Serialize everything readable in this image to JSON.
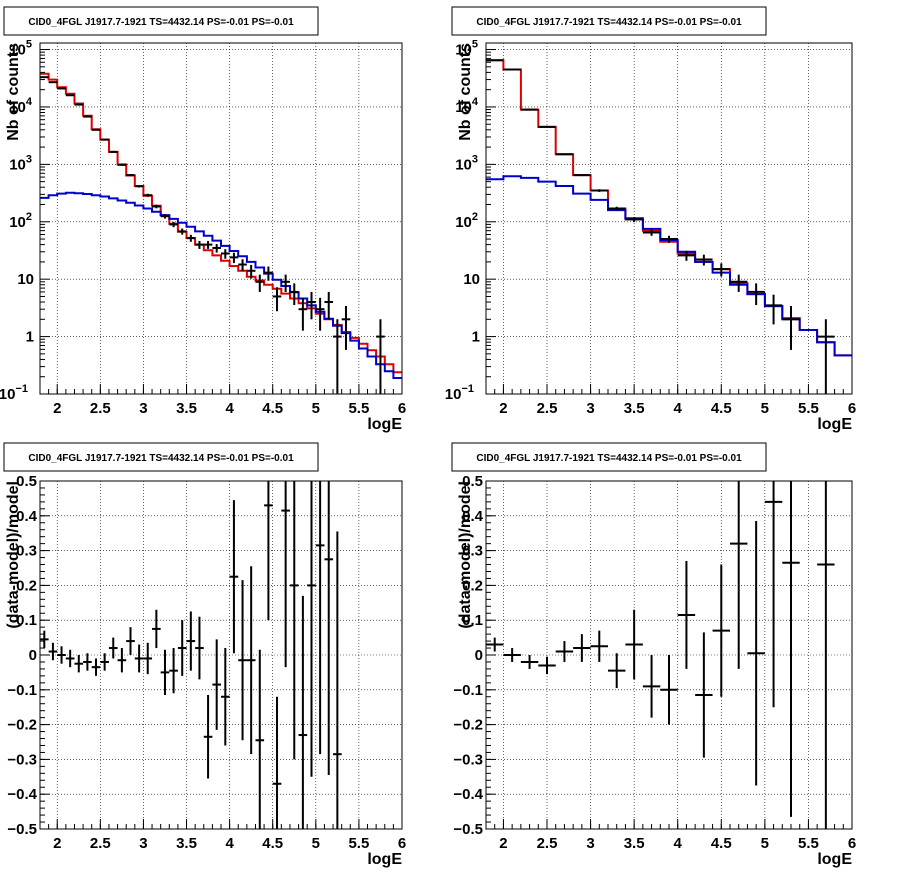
{
  "chart_data": [
    {
      "type": "step-histogram",
      "title": "CID0_4FGL J1917.7-1921 TS=4432.14 PS=-0.01 PS=-0.01",
      "xlabel": "logE",
      "ylabel": "Nb of counts",
      "xlim": [
        1.8,
        6.0
      ],
      "ylim": [
        0.1,
        130000
      ],
      "yscale": "log",
      "grid": true,
      "x_ticks": [
        "2",
        "2.5",
        "3",
        "3.5",
        "4",
        "4.5",
        "5",
        "5.5",
        "6"
      ],
      "y_ticks": [
        {
          "v": 0.1,
          "t": "10",
          "sup": "−1"
        },
        {
          "v": 1,
          "t": "1",
          "sup": ""
        },
        {
          "v": 10,
          "t": "10",
          "sup": ""
        },
        {
          "v": 100,
          "t": "10",
          "sup": "2"
        },
        {
          "v": 1000,
          "t": "10",
          "sup": "3"
        },
        {
          "v": 10000,
          "t": "10",
          "sup": "4"
        },
        {
          "v": 100000,
          "t": "10",
          "sup": "5"
        }
      ],
      "edges": [
        1.8,
        1.9,
        2.0,
        2.1,
        2.2,
        2.3,
        2.4,
        2.5,
        2.6,
        2.7,
        2.8,
        2.9,
        3.0,
        3.1,
        3.2,
        3.3,
        3.4,
        3.5,
        3.6,
        3.7,
        3.8,
        3.9,
        4.0,
        4.1,
        4.2,
        4.3,
        4.4,
        4.5,
        4.6,
        4.7,
        4.8,
        4.9,
        5.0,
        5.1,
        5.2,
        5.3,
        5.4,
        5.5,
        5.6,
        5.7,
        5.8,
        5.9,
        6.0
      ],
      "series": [
        {
          "color": "#dd0000",
          "values": [
            38000,
            30000,
            22000,
            17000,
            11500,
            7000,
            4100,
            2700,
            1650,
            1000,
            640,
            420,
            285,
            190,
            130,
            92,
            67,
            52,
            40,
            32,
            26,
            21,
            17,
            14,
            11,
            9.5,
            8,
            6.8,
            5.6,
            4.6,
            3.8,
            3.1,
            2.5,
            2.0,
            1.6,
            1.2,
            0.95,
            0.75,
            0.58,
            0.45,
            0.33,
            0.24
          ]
        },
        {
          "color": "#0000cc",
          "values": [
            260,
            290,
            310,
            320,
            315,
            305,
            290,
            275,
            255,
            235,
            215,
            192,
            170,
            150,
            130,
            112,
            96,
            82,
            68,
            57,
            47,
            38,
            31,
            25,
            20,
            16,
            12.5,
            9.8,
            7.6,
            5.9,
            4.6,
            3.5,
            2.7,
            2.05,
            1.55,
            1.15,
            0.85,
            0.62,
            0.45,
            0.33,
            0.25,
            0.19
          ]
        }
      ],
      "points": [
        {
          "x": 1.85,
          "y": 33000
        },
        {
          "x": 1.95,
          "y": 27000
        },
        {
          "x": 2.05,
          "y": 21000
        },
        {
          "x": 2.15,
          "y": 16000
        },
        {
          "x": 2.25,
          "y": 11000
        },
        {
          "x": 2.35,
          "y": 6800
        },
        {
          "x": 2.45,
          "y": 4000
        },
        {
          "x": 2.55,
          "y": 2700
        },
        {
          "x": 2.65,
          "y": 1650
        },
        {
          "x": 2.75,
          "y": 980
        },
        {
          "x": 2.85,
          "y": 650
        },
        {
          "x": 2.95,
          "y": 415
        },
        {
          "x": 3.05,
          "y": 290
        },
        {
          "x": 3.15,
          "y": 185
        },
        {
          "x": 3.25,
          "y": 125
        },
        {
          "x": 3.35,
          "y": 90
        },
        {
          "x": 3.45,
          "y": 68
        },
        {
          "x": 3.55,
          "y": 52
        },
        {
          "x": 3.65,
          "y": 40
        },
        {
          "x": 3.75,
          "y": 40
        },
        {
          "x": 3.85,
          "y": 35
        },
        {
          "x": 3.95,
          "y": 28
        },
        {
          "x": 4.05,
          "y": 24
        },
        {
          "x": 4.15,
          "y": 18
        },
        {
          "x": 4.25,
          "y": 14
        },
        {
          "x": 4.35,
          "y": 9
        },
        {
          "x": 4.45,
          "y": 13
        },
        {
          "x": 4.55,
          "y": 5
        },
        {
          "x": 4.65,
          "y": 9
        },
        {
          "x": 4.75,
          "y": 6
        },
        {
          "x": 4.85,
          "y": 3
        },
        {
          "x": 4.95,
          "y": 4
        },
        {
          "x": 5.05,
          "y": 3
        },
        {
          "x": 5.15,
          "y": 4
        },
        {
          "x": 5.25,
          "y": 1
        },
        {
          "x": 5.35,
          "y": 2
        },
        {
          "x": 5.75,
          "y": 1
        }
      ]
    },
    {
      "type": "step-histogram",
      "title": "CID0_4FGL J1917.7-1921 TS=4432.14 PS=-0.01 PS=-0.01",
      "xlabel": "logE",
      "ylabel": "Nb of counts",
      "xlim": [
        1.8,
        6.0
      ],
      "ylim": [
        0.1,
        130000
      ],
      "yscale": "log",
      "grid": true,
      "x_ticks": [
        "2",
        "2.5",
        "3",
        "3.5",
        "4",
        "4.5",
        "5",
        "5.5",
        "6"
      ],
      "y_ticks": [
        {
          "v": 0.1,
          "t": "10",
          "sup": "−1"
        },
        {
          "v": 1,
          "t": "1",
          "sup": ""
        },
        {
          "v": 10,
          "t": "10",
          "sup": ""
        },
        {
          "v": 100,
          "t": "10",
          "sup": "2"
        },
        {
          "v": 1000,
          "t": "10",
          "sup": "3"
        },
        {
          "v": 10000,
          "t": "10",
          "sup": "4"
        },
        {
          "v": 100000,
          "t": "10",
          "sup": "5"
        }
      ],
      "edges": [
        1.8,
        2.0,
        2.2,
        2.4,
        2.6,
        2.8,
        3.0,
        3.2,
        3.4,
        3.6,
        3.8,
        4.0,
        4.2,
        4.4,
        4.6,
        4.8,
        5.0,
        5.2,
        5.4,
        5.6,
        5.8,
        6.0
      ],
      "series": [
        {
          "color": "#dd0000",
          "values": [
            65000,
            45000,
            9000,
            4500,
            1500,
            650,
            350,
            170,
            110,
            70,
            45,
            28,
            20,
            15,
            8.5,
            5.5,
            3.4,
            2.1,
            1.3,
            0.8,
            0.47
          ]
        },
        {
          "color": "#0000cc",
          "values": [
            550,
            620,
            580,
            500,
            420,
            310,
            240,
            160,
            115,
            75,
            48,
            30,
            20,
            13,
            8,
            5.5,
            3.4,
            2.0,
            1.3,
            0.8,
            0.47
          ]
        }
      ],
      "points": [
        {
          "x": 1.9,
          "y": 65000
        },
        {
          "x": 2.1,
          "y": 45000
        },
        {
          "x": 2.3,
          "y": 9000
        },
        {
          "x": 2.5,
          "y": 4500
        },
        {
          "x": 2.7,
          "y": 1500
        },
        {
          "x": 2.9,
          "y": 650
        },
        {
          "x": 3.1,
          "y": 350
        },
        {
          "x": 3.3,
          "y": 170
        },
        {
          "x": 3.5,
          "y": 110
        },
        {
          "x": 3.7,
          "y": 65
        },
        {
          "x": 3.9,
          "y": 50
        },
        {
          "x": 4.1,
          "y": 26
        },
        {
          "x": 4.3,
          "y": 22
        },
        {
          "x": 4.5,
          "y": 15
        },
        {
          "x": 4.7,
          "y": 9
        },
        {
          "x": 4.9,
          "y": 6
        },
        {
          "x": 5.1,
          "y": 3.5
        },
        {
          "x": 5.3,
          "y": 2
        },
        {
          "x": 5.7,
          "y": 1
        }
      ]
    },
    {
      "type": "errorbar",
      "title": "CID0_4FGL J1917.7-1921 TS=4432.14 PS=-0.01 PS=-0.01",
      "xlabel": "logE",
      "ylabel": "(data-model)/model",
      "xlim": [
        1.8,
        6.0
      ],
      "ylim": [
        -0.5,
        0.5
      ],
      "yscale": "linear",
      "grid": true,
      "x_ticks": [
        "2",
        "2.5",
        "3",
        "3.5",
        "4",
        "4.5",
        "5",
        "5.5",
        "6"
      ],
      "y_ticks": [
        "−0.5",
        "−0.4",
        "−0.3",
        "−0.2",
        "−0.1",
        "0",
        "0.1",
        "0.2",
        "0.3",
        "0.4",
        "0.5"
      ],
      "points": [
        {
          "x": 1.85,
          "y": 0.045,
          "err": 0.025
        },
        {
          "x": 1.95,
          "y": 0.01,
          "err": 0.025
        },
        {
          "x": 2.05,
          "y": 0.0,
          "err": 0.025
        },
        {
          "x": 2.15,
          "y": -0.01,
          "err": 0.025
        },
        {
          "x": 2.25,
          "y": -0.025,
          "err": 0.025
        },
        {
          "x": 2.35,
          "y": -0.02,
          "err": 0.025
        },
        {
          "x": 2.45,
          "y": -0.035,
          "err": 0.025
        },
        {
          "x": 2.55,
          "y": -0.02,
          "err": 0.025
        },
        {
          "x": 2.65,
          "y": 0.02,
          "err": 0.03
        },
        {
          "x": 2.75,
          "y": -0.015,
          "err": 0.035
        },
        {
          "x": 2.85,
          "y": 0.04,
          "err": 0.04
        },
        {
          "x": 2.95,
          "y": -0.01,
          "err": 0.04
        },
        {
          "x": 3.05,
          "y": -0.01,
          "err": 0.045
        },
        {
          "x": 3.15,
          "y": 0.075,
          "err": 0.055
        },
        {
          "x": 3.25,
          "y": -0.05,
          "err": 0.065
        },
        {
          "x": 3.35,
          "y": -0.045,
          "err": 0.065
        },
        {
          "x": 3.45,
          "y": 0.02,
          "err": 0.08
        },
        {
          "x": 3.55,
          "y": 0.04,
          "err": 0.085
        },
        {
          "x": 3.65,
          "y": 0.02,
          "err": 0.09
        },
        {
          "x": 3.75,
          "y": -0.235,
          "err": 0.12
        },
        {
          "x": 3.85,
          "y": -0.085,
          "err": 0.13
        },
        {
          "x": 3.95,
          "y": -0.12,
          "err": 0.14
        },
        {
          "x": 4.05,
          "y": 0.225,
          "err": 0.22
        },
        {
          "x": 4.15,
          "y": -0.015,
          "err": 0.23
        },
        {
          "x": 4.25,
          "y": -0.015,
          "err": 0.27
        },
        {
          "x": 4.35,
          "y": -0.245,
          "err": 0.26
        },
        {
          "x": 4.45,
          "y": 0.43,
          "err": 0.33
        },
        {
          "x": 4.55,
          "y": -0.37,
          "err": 0.25
        },
        {
          "x": 4.65,
          "y": 0.415,
          "err": 0.45
        },
        {
          "x": 4.75,
          "y": 0.2,
          "err": 0.5
        },
        {
          "x": 4.85,
          "y": -0.23,
          "err": 0.4
        },
        {
          "x": 4.95,
          "y": 0.2,
          "err": 0.55
        },
        {
          "x": 5.05,
          "y": 0.315,
          "err": 0.6
        },
        {
          "x": 5.15,
          "y": 0.275,
          "err": 0.62
        },
        {
          "x": 5.25,
          "y": -0.285,
          "err": 0.64
        }
      ]
    },
    {
      "type": "errorbar",
      "title": "CID0_4FGL J1917.7-1921 TS=4432.14 PS=-0.01 PS=-0.01",
      "xlabel": "logE",
      "ylabel": "(data-model)/model",
      "xlim": [
        1.8,
        6.0
      ],
      "ylim": [
        -0.5,
        0.5
      ],
      "yscale": "linear",
      "grid": true,
      "x_ticks": [
        "2",
        "2.5",
        "3",
        "3.5",
        "4",
        "4.5",
        "5",
        "5.5",
        "6"
      ],
      "y_ticks": [
        "−0.5",
        "−0.4",
        "−0.3",
        "−0.2",
        "−0.1",
        "0",
        "0.1",
        "0.2",
        "0.3",
        "0.4",
        "0.5"
      ],
      "points": [
        {
          "x": 1.9,
          "y": 0.03,
          "err": 0.02
        },
        {
          "x": 2.1,
          "y": 0.0,
          "err": 0.02
        },
        {
          "x": 2.3,
          "y": -0.02,
          "err": 0.02
        },
        {
          "x": 2.5,
          "y": -0.03,
          "err": 0.025
        },
        {
          "x": 2.7,
          "y": 0.01,
          "err": 0.03
        },
        {
          "x": 2.9,
          "y": 0.02,
          "err": 0.04
        },
        {
          "x": 3.1,
          "y": 0.025,
          "err": 0.045
        },
        {
          "x": 3.3,
          "y": -0.045,
          "err": 0.05
        },
        {
          "x": 3.5,
          "y": 0.03,
          "err": 0.1
        },
        {
          "x": 3.7,
          "y": -0.09,
          "err": 0.09
        },
        {
          "x": 3.9,
          "y": -0.1,
          "err": 0.1
        },
        {
          "x": 4.1,
          "y": 0.115,
          "err": 0.155
        },
        {
          "x": 4.3,
          "y": -0.115,
          "err": 0.18
        },
        {
          "x": 4.5,
          "y": 0.07,
          "err": 0.19
        },
        {
          "x": 4.7,
          "y": 0.32,
          "err": 0.36
        },
        {
          "x": 4.9,
          "y": 0.005,
          "err": 0.38
        },
        {
          "x": 5.1,
          "y": 0.44,
          "err": 0.59
        },
        {
          "x": 5.3,
          "y": 0.265,
          "err": 0.73
        },
        {
          "x": 5.7,
          "y": 0.26,
          "err": 0.8
        }
      ]
    }
  ]
}
